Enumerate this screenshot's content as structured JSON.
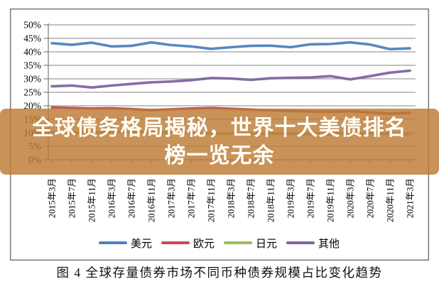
{
  "banner": {
    "line1": "全球债务格局揭秘，世界十大美债排名",
    "line2": "榜一览无余",
    "background_color": "#BC7A34",
    "background_opacity": 0.82,
    "text_color": "#FFFEF6"
  },
  "caption": "图 4  全球存量债券市场不同币种债券规模占比变化趋势",
  "chart_data": {
    "type": "line",
    "categories": [
      "2015年3月",
      "2015年7月",
      "2015年11月",
      "2016年3月",
      "2016年7月",
      "2016年11月",
      "2017年3月",
      "2017年7月",
      "2017年11月",
      "2018年3月",
      "2018年7月",
      "2018年11月",
      "2019年3月",
      "2019年7月",
      "2019年11月",
      "2020年3月",
      "2020年7月",
      "2020年11月",
      "2021年3月"
    ],
    "series": [
      {
        "key": "usd",
        "name": "美元",
        "color": "#4F81BD",
        "values": [
          43.2,
          42.6,
          43.4,
          42.0,
          42.2,
          43.5,
          42.5,
          42.0,
          41.1,
          41.7,
          42.2,
          42.3,
          41.7,
          42.8,
          42.9,
          43.5,
          42.7,
          41.0,
          41.3
        ]
      },
      {
        "key": "eur",
        "name": "欧元",
        "color": "#C0504D",
        "values": [
          19.4,
          19.2,
          19.0,
          19.1,
          18.8,
          18.4,
          18.7,
          19.0,
          19.2,
          18.9,
          18.6,
          18.3,
          18.1,
          17.9,
          17.8,
          18.0,
          17.5,
          17.1,
          17.4
        ]
      },
      {
        "key": "jpy",
        "name": "日元",
        "color": "#9BBB59",
        "values": [
          10.2,
          10.1,
          10.0,
          10.3,
          10.4,
          10.2,
          10.0,
          9.9,
          9.8,
          9.7,
          9.6,
          9.7,
          9.6,
          9.5,
          9.4,
          9.8,
          9.7,
          9.6,
          9.5
        ]
      },
      {
        "key": "other",
        "name": "其他",
        "color": "#8064A2",
        "values": [
          27.2,
          27.5,
          26.8,
          27.5,
          28.1,
          28.7,
          29.0,
          29.5,
          30.3,
          30.1,
          29.6,
          30.2,
          30.4,
          30.5,
          31.0,
          29.8,
          31.0,
          32.3,
          33.0
        ]
      }
    ],
    "ylim": [
      0,
      50
    ],
    "ytick_step": 5,
    "ytick_suffix": "%",
    "grid": true,
    "legend_position": "bottom-inside",
    "axis_color": "#7E7E7E",
    "grid_color": "#9C9C9C",
    "frame_color": "#7A7A7A"
  }
}
